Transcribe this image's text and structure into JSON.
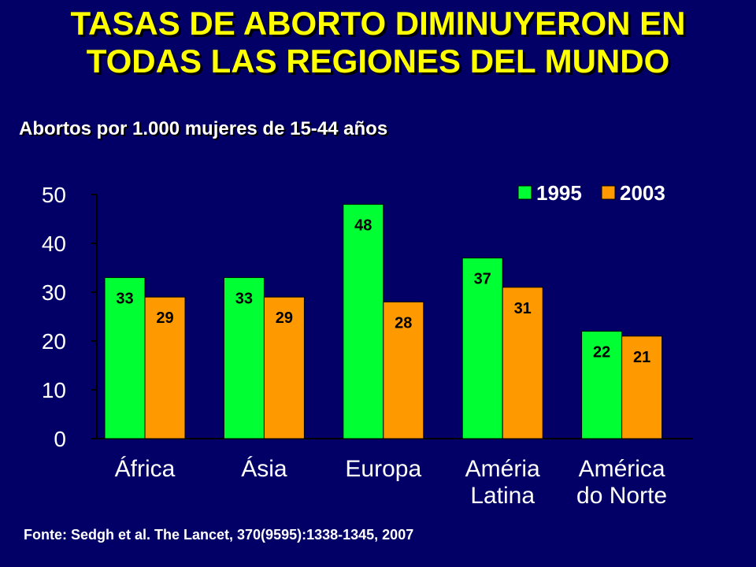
{
  "title": {
    "line1": "TASAS DE ABORTO DIMINUYERON EN",
    "line2": "TODAS LAS REGIONES DEL MUNDO"
  },
  "subtitle": "Abortos por 1.000 mujeres de 15-44 años",
  "source": "Fonte: Sedgh et al. The Lancet, 370(9595):1338-1345,  2007",
  "colors": {
    "background": "#020066",
    "title": "#ffff00",
    "text": "#ffffff",
    "series_1995": "#00ff33",
    "series_2003": "#ff9900"
  },
  "chart_data": {
    "type": "bar",
    "categories": [
      [
        "África"
      ],
      [
        "Ásia"
      ],
      [
        "Europa"
      ],
      [
        "Améria",
        "Latina"
      ],
      [
        "América",
        "do Norte"
      ]
    ],
    "series": [
      {
        "name": "1995",
        "color": "#00ff33",
        "values": [
          33,
          33,
          48,
          37,
          22
        ]
      },
      {
        "name": "2003",
        "color": "#ff9900",
        "values": [
          29,
          29,
          28,
          31,
          21
        ]
      }
    ],
    "yticks": [
      0,
      10,
      20,
      30,
      40,
      50
    ],
    "ylim": [
      0,
      50
    ],
    "legend_position": "top-right",
    "grid": false
  }
}
